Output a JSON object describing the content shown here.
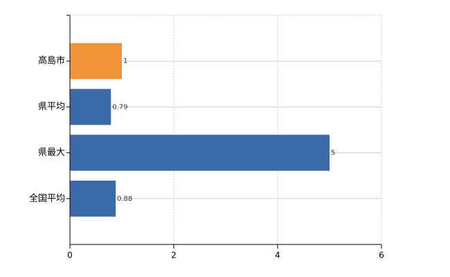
{
  "chart_data": {
    "type": "bar",
    "orientation": "horizontal",
    "categories": [
      "高島市",
      "県平均",
      "県最大",
      "全国平均"
    ],
    "values": [
      1,
      0.79,
      5,
      0.88
    ],
    "colors": [
      "#f0953a",
      "#3a6aa8",
      "#3a6aa8",
      "#3a6aa8"
    ],
    "xlim": [
      0,
      6
    ],
    "xticks": [
      0,
      2,
      4,
      6
    ],
    "grid": true
  }
}
